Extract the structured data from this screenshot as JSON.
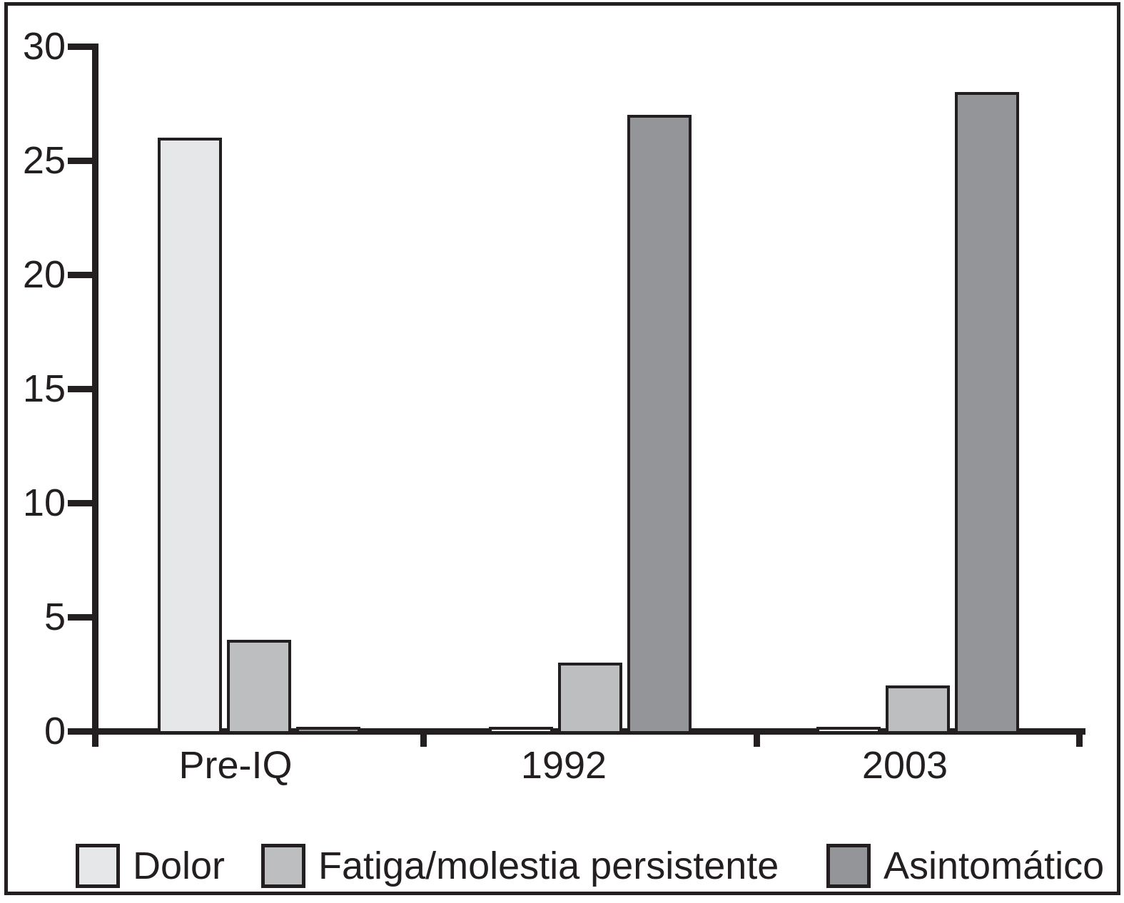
{
  "chart_data": {
    "type": "bar",
    "title": "",
    "xlabel": "",
    "ylabel": "",
    "categories": [
      "Pre-IQ",
      "1992",
      "2003"
    ],
    "series": [
      {
        "name": "Dolor",
        "color": "#e6e7e8",
        "values": [
          26,
          0.2,
          0.2
        ]
      },
      {
        "name": "Fatiga/molestia persistente",
        "color": "#bcbec0",
        "values": [
          4,
          3,
          2
        ]
      },
      {
        "name": "Asintomático",
        "color": "#939598",
        "values": [
          0.2,
          27,
          28
        ]
      }
    ],
    "ylim": [
      0,
      30
    ],
    "yticks": [
      0,
      5,
      10,
      15,
      20,
      25,
      30
    ],
    "grid": false,
    "legend_position": "bottom",
    "axis_color": "#231f20",
    "bar_outline_color": "#231f20",
    "text_color": "#231f20",
    "background_color": "#ffffff",
    "frame_border_color": "#231f20"
  }
}
